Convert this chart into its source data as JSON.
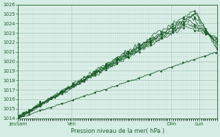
{
  "background_color": "#d4ede4",
  "plot_bg_color": "#dff0eb",
  "grid_major_color": "#9ec4b4",
  "grid_minor_color": "#b8d8cc",
  "line_color": "#1a5c28",
  "xlabel": "Pression niveau de la mer( hPa )",
  "ylim": [
    1014,
    1026
  ],
  "yticks": [
    1014,
    1015,
    1016,
    1017,
    1018,
    1019,
    1020,
    1021,
    1022,
    1023,
    1024,
    1025,
    1026
  ],
  "xtick_labels": [
    "JeuSam",
    "Ven",
    "Dim",
    "Lun"
  ],
  "xtick_pos": [
    0.0,
    0.27,
    0.77,
    0.91
  ],
  "n_points": 200,
  "line_params": [
    {
      "x0": 0.0,
      "y0": 1014.0,
      "xpeak": 0.89,
      "ypeak": 1025.4,
      "ydrop": 1021.2,
      "noise": 0.12,
      "lw": 0.6
    },
    {
      "x0": 0.0,
      "y0": 1014.0,
      "xpeak": 0.89,
      "ypeak": 1025.1,
      "ydrop": 1021.5,
      "noise": 0.1,
      "lw": 0.6
    },
    {
      "x0": 0.0,
      "y0": 1014.0,
      "xpeak": 0.88,
      "ypeak": 1024.9,
      "ydrop": 1021.8,
      "noise": 0.12,
      "lw": 0.6
    },
    {
      "x0": 0.0,
      "y0": 1014.1,
      "xpeak": 0.87,
      "ypeak": 1024.6,
      "ydrop": 1022.0,
      "noise": 0.1,
      "lw": 0.6
    },
    {
      "x0": 0.0,
      "y0": 1014.1,
      "xpeak": 0.86,
      "ypeak": 1024.3,
      "ydrop": 1022.2,
      "noise": 0.11,
      "lw": 0.6
    },
    {
      "x0": 0.0,
      "y0": 1014.2,
      "xpeak": 0.85,
      "ypeak": 1024.0,
      "ydrop": 1022.4,
      "noise": 0.1,
      "lw": 0.6
    },
    {
      "x0": 0.0,
      "y0": 1014.1,
      "xpeak": 0.84,
      "ypeak": 1023.7,
      "ydrop": 1022.5,
      "noise": 0.09,
      "lw": 0.6
    },
    {
      "x0": 0.0,
      "y0": 1014.0,
      "xpeak": 1.0,
      "ypeak": 1021.0,
      "ydrop": 1021.0,
      "noise": 0.04,
      "lw": 0.7
    }
  ]
}
